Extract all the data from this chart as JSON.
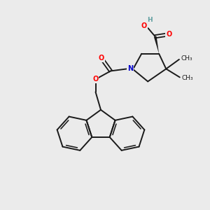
{
  "background_color": "#ebebeb",
  "bond_color": "#1a1a1a",
  "atom_colors": {
    "O": "#ff0000",
    "N": "#0000cc",
    "H": "#5f9ea0"
  },
  "font_size_atom": 7.0,
  "font_size_me": 6.5,
  "figsize": [
    3.0,
    3.0
  ],
  "dpi": 100,
  "xlim": [
    0,
    10
  ],
  "ylim": [
    0,
    10
  ]
}
